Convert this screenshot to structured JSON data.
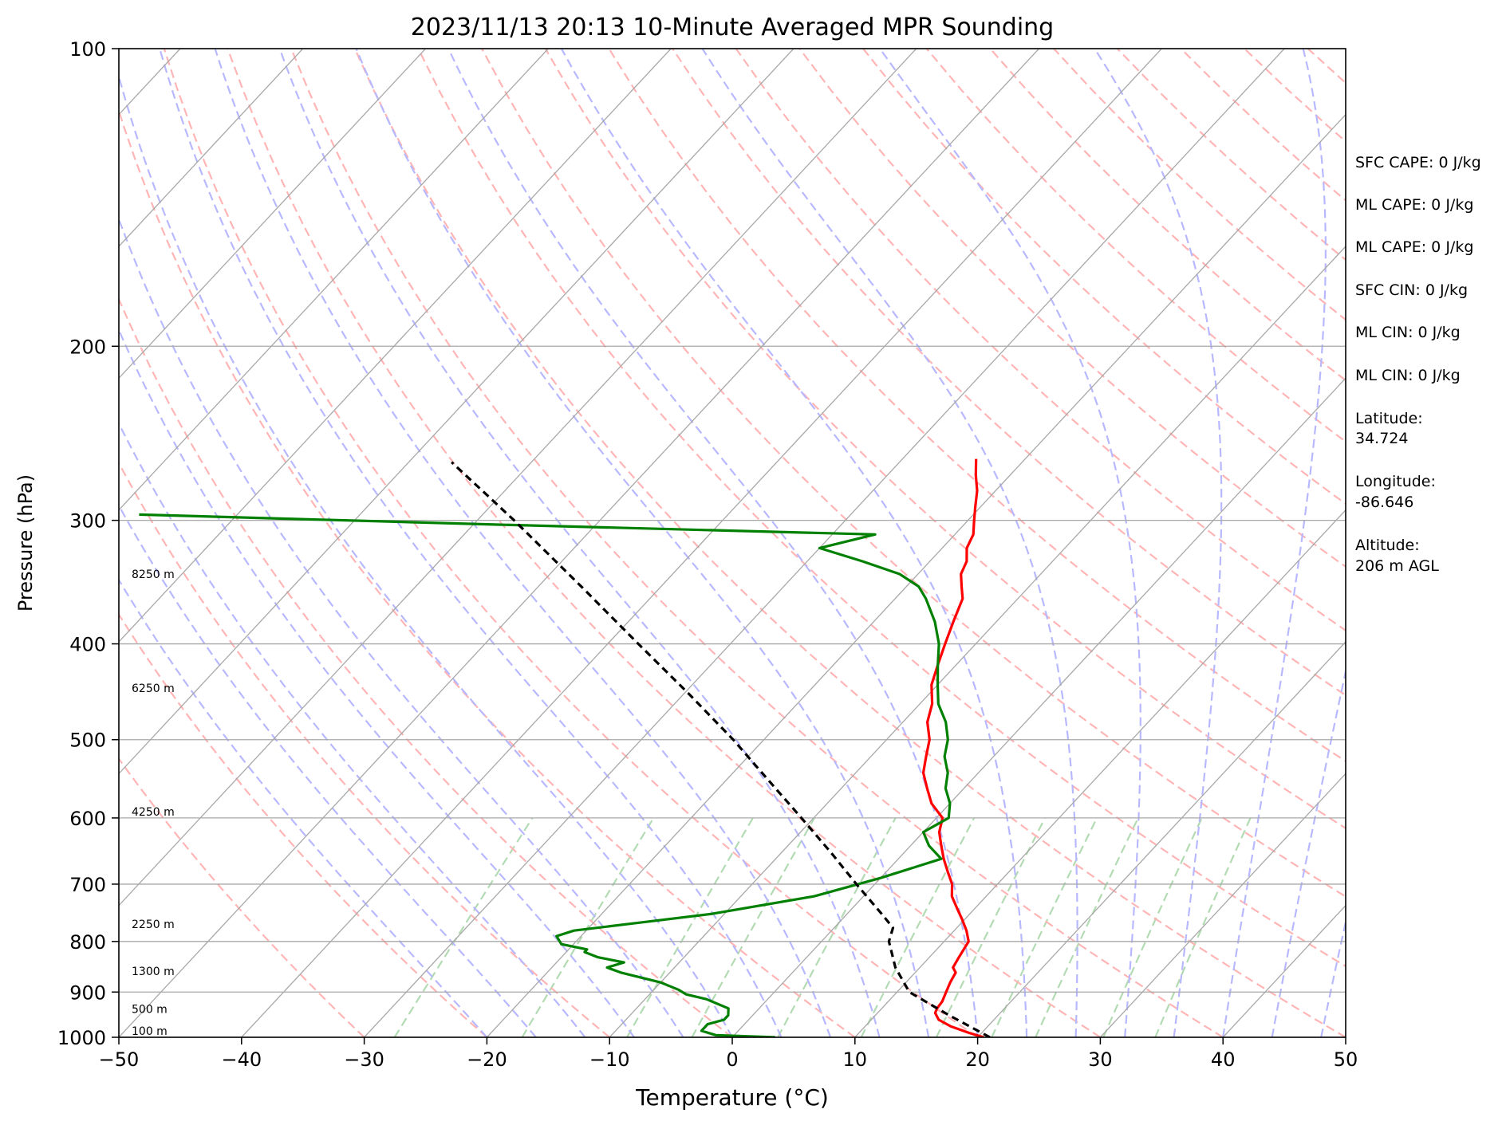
{
  "chart_data": {
    "type": "line",
    "title": "2023/11/13 20:13 10-Minute Averaged MPR Sounding",
    "xlabel": "Temperature (°C)",
    "ylabel": "Pressure (hPa)",
    "xlim": [
      -50,
      50
    ],
    "ylim": [
      1000,
      100
    ],
    "y_scale": "log",
    "skew": "skew-T",
    "grid": true,
    "x_ticks": [
      -50,
      -40,
      -30,
      -20,
      -10,
      0,
      10,
      20,
      30,
      40,
      50
    ],
    "x_tick_labels": [
      "−50",
      "−40",
      "−30",
      "−20",
      "−10",
      "0",
      "10",
      "20",
      "30",
      "40",
      "50"
    ],
    "y_ticks": [
      1000,
      900,
      800,
      700,
      600,
      500,
      400,
      300,
      200,
      100
    ],
    "y_tick_labels": [
      "1000",
      "900",
      "800",
      "700",
      "600",
      "500",
      "400",
      "300",
      "200",
      "100"
    ],
    "series": [
      {
        "color": "#ff0000",
        "kind": "temperature",
        "p": [
          1000,
          990,
          975,
          960,
          945,
          935,
          920,
          900,
          880,
          860,
          850,
          830,
          800,
          780,
          760,
          740,
          720,
          700,
          680,
          660,
          640,
          620,
          600,
          580,
          560,
          540,
          520,
          500,
          480,
          460,
          440,
          420,
          400,
          380,
          360,
          350,
          340,
          330,
          320,
          310,
          300,
          290,
          280,
          270,
          260
        ],
        "t": [
          20.5,
          19.0,
          17.0,
          15.5,
          14.7,
          14.5,
          14.4,
          14.0,
          13.6,
          13.3,
          12.7,
          12.4,
          12.0,
          11.0,
          9.8,
          8.5,
          7.2,
          6.3,
          5.0,
          3.7,
          2.5,
          1.3,
          0.5,
          -1.5,
          -3.0,
          -4.5,
          -5.5,
          -6.5,
          -8.0,
          -9.0,
          -10.5,
          -11.5,
          -12.5,
          -13.5,
          -14.5,
          -15.5,
          -16.5,
          -17.0,
          -18.0,
          -18.5,
          -19.5,
          -20.5,
          -21.5,
          -22.8,
          -24.0
        ]
      },
      {
        "color": "#008000",
        "kind": "dewpoint",
        "p": [
          1000,
          995,
          985,
          970,
          960,
          950,
          935,
          915,
          905,
          895,
          880,
          860,
          850,
          840,
          830,
          820,
          815,
          805,
          790,
          780,
          765,
          750,
          720,
          690,
          660,
          640,
          620,
          610,
          600,
          580,
          560,
          540,
          520,
          500,
          480,
          460,
          440,
          420,
          400,
          380,
          360,
          350,
          340,
          330,
          320,
          310,
          303,
          296
        ],
        "t": [
          3.5,
          -1.5,
          -3.0,
          -3.0,
          -2.0,
          -2.0,
          -2.5,
          -5.0,
          -7.0,
          -8.0,
          -10.0,
          -14.0,
          -15.5,
          -14.5,
          -17.0,
          -18.5,
          -18.5,
          -21.0,
          -22.0,
          -21.0,
          -16.0,
          -11.0,
          -4.0,
          0.0,
          3.5,
          1.5,
          0.0,
          0.5,
          1.0,
          0.0,
          -1.5,
          -2.5,
          -4.0,
          -5.0,
          -6.5,
          -8.5,
          -10.0,
          -11.5,
          -13.0,
          -15.0,
          -17.5,
          -19.0,
          -21.5,
          -25.5,
          -30.0,
          -26.5,
          -58.0,
          -88.0
        ]
      },
      {
        "color": "#000000",
        "kind": "parcel",
        "p": [
          1000,
          950,
          900,
          850,
          800,
          775,
          750,
          700,
          650,
          600,
          550,
          500,
          450,
          400,
          350,
          300,
          262
        ],
        "t": [
          21.0,
          16.0,
          11.0,
          8.0,
          5.5,
          4.8,
          2.8,
          -1.5,
          -6.0,
          -11.0,
          -16.5,
          -22.5,
          -29.5,
          -37.5,
          -46.5,
          -57.0,
          -66.5
        ]
      }
    ],
    "height_labels": [
      "100 m",
      "500 m",
      "1300 m",
      "2250 m",
      "4250 m",
      "6250 m",
      "8250 m"
    ],
    "height_pressures": [
      1000,
      950,
      870,
      780,
      600,
      450,
      345
    ],
    "info": {
      "sfc_cape": "SFC CAPE: 0 J/kg",
      "ml_cape_1": "ML CAPE: 0 J/kg",
      "ml_cape_2": "ML CAPE: 0 J/kg",
      "sfc_cin": "SFC CIN: 0 J/kg",
      "ml_cin_1": "ML CIN: 0 J/kg",
      "ml_cin_2": "ML CIN: 0 J/kg",
      "latitude_label": "Latitude:",
      "latitude_value": "34.724",
      "longitude_label": "Longitude:",
      "longitude_value": "-86.646",
      "altitude_label": "Altitude:",
      "altitude_value": "206 m AGL"
    },
    "colors": {
      "isotherm": "#a8a8a8",
      "isobar": "#a8a8a8",
      "dry_adiabat": "#ffb5b5",
      "moist_adiabat": "#b8b8ff",
      "mixing_ratio": "#b3dbb3"
    }
  }
}
